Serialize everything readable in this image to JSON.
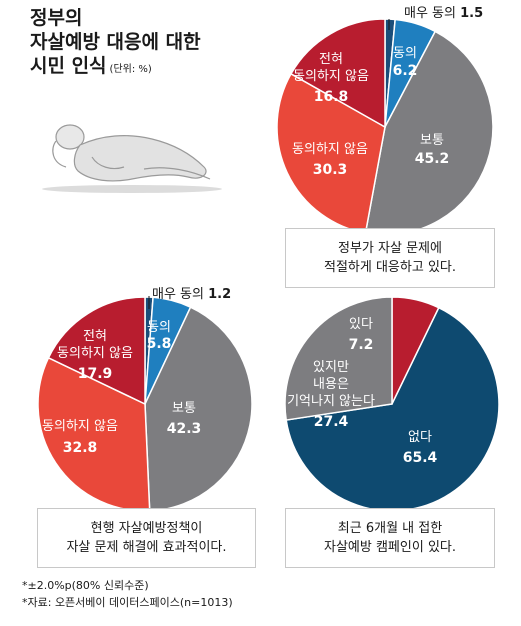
{
  "title": {
    "line1": "정부의",
    "line2": "자살예방 대응에 대한",
    "line3": "시민 인식",
    "unit": "(단위: %)"
  },
  "colors": {
    "strongly_agree": "#1a4e7a",
    "agree": "#1f7fbf",
    "neutral": "#7d7d80",
    "disagree": "#e9483a",
    "strongly_disagree": "#b81d2f",
    "yes": "#b81d2f",
    "yes_but_forgot": "#7d7d80",
    "no": "#0e4a70"
  },
  "chart_data": [
    {
      "type": "pie",
      "caption": [
        "정부가 자살 문제에",
        "적절하게 대응하고 있다."
      ],
      "slices": [
        {
          "label": "매우 동의",
          "value": 1.5,
          "color": "#1a4e7a"
        },
        {
          "label": "동의",
          "value": 6.2,
          "color": "#1f7fbf"
        },
        {
          "label": "보통",
          "value": 45.2,
          "color": "#7d7d80"
        },
        {
          "label": "동의하지 않음",
          "value": 30.3,
          "color": "#e9483a"
        },
        {
          "label": "전혀 동의하지 않음",
          "value": 16.8,
          "color": "#b81d2f"
        }
      ]
    },
    {
      "type": "pie",
      "caption": [
        "현행 자살예방정책이",
        "자살 문제 해결에 효과적이다."
      ],
      "slices": [
        {
          "label": "매우 동의",
          "value": 1.2,
          "color": "#1a4e7a"
        },
        {
          "label": "동의",
          "value": 5.8,
          "color": "#1f7fbf"
        },
        {
          "label": "보통",
          "value": 42.3,
          "color": "#7d7d80"
        },
        {
          "label": "동의하지 않음",
          "value": 32.8,
          "color": "#e9483a"
        },
        {
          "label": "전혀 동의하지 않음",
          "value": 17.9,
          "color": "#b81d2f"
        }
      ]
    },
    {
      "type": "pie",
      "caption": [
        "최근 6개월 내 접한",
        "자살예방 캠페인이 있다."
      ],
      "slices": [
        {
          "label": "있다",
          "value": 7.2,
          "color": "#b81d2f"
        },
        {
          "label": "없다",
          "value": 65.4,
          "color": "#0e4a70"
        },
        {
          "label": "있지만 내용은 기억나지 않는다",
          "value": 27.4,
          "color": "#7d7d80"
        }
      ]
    }
  ],
  "footnotes": {
    "line1": "*±2.0%p(80% 신뢰수준)",
    "line2": "*자료: 오픈서베이 데이터스페이스(n=1013)"
  }
}
